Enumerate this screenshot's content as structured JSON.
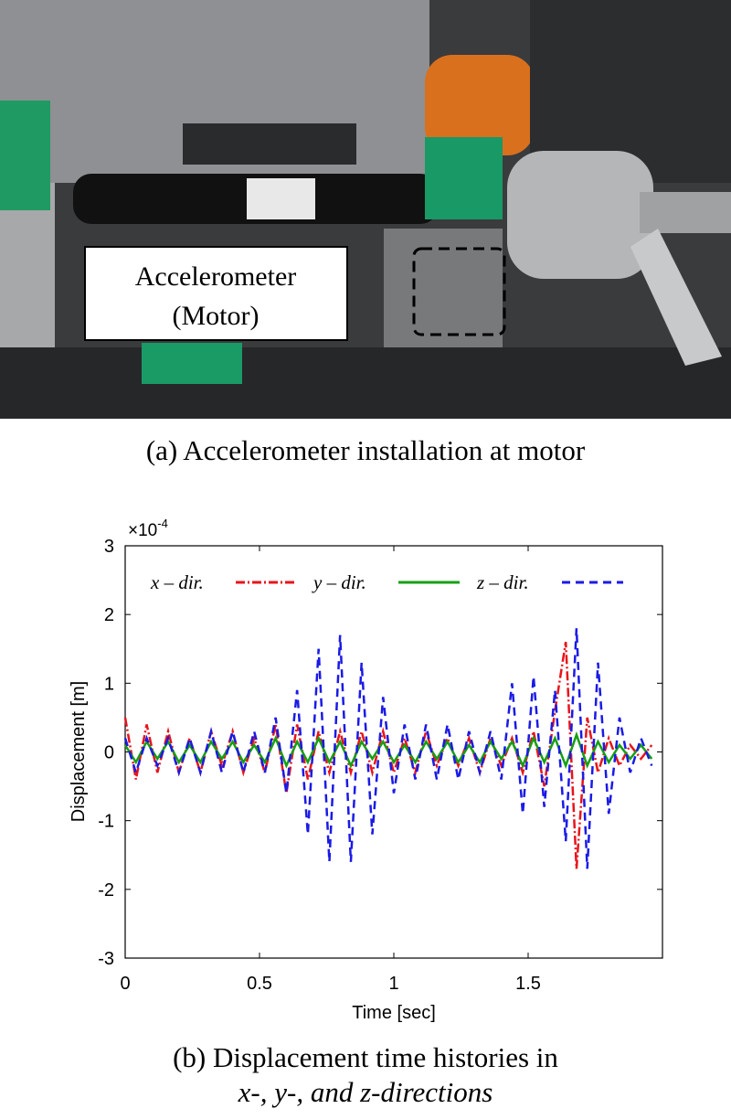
{
  "photo": {
    "label": [
      "Accelerometer",
      "(Motor)"
    ]
  },
  "captions": {
    "a": "(a) Accelerometer installation at motor",
    "b": [
      "(b) Displacement time histories in",
      "x-, y-, and z-directions"
    ]
  },
  "chart_data": {
    "type": "line",
    "xlabel": "Time [sec]",
    "ylabel": "Displacement [m]",
    "y_scale_base": "×10",
    "y_scale_exponent": "-4",
    "xlim": [
      0,
      2
    ],
    "xticks": [
      0,
      0.5,
      1,
      1.5
    ],
    "ylim": [
      -3,
      3
    ],
    "yticks": [
      -3,
      -2,
      -1,
      0,
      1,
      2,
      3
    ],
    "grid": false,
    "legend": "top",
    "x": [
      0,
      0.04,
      0.08,
      0.12,
      0.16,
      0.2,
      0.24,
      0.28,
      0.32,
      0.36,
      0.4,
      0.44,
      0.48,
      0.52,
      0.56,
      0.6,
      0.64,
      0.68,
      0.72,
      0.76,
      0.8,
      0.84,
      0.88,
      0.92,
      0.96,
      1,
      1.04,
      1.08,
      1.12,
      1.16,
      1.2,
      1.24,
      1.28,
      1.32,
      1.36,
      1.4,
      1.44,
      1.48,
      1.52,
      1.56,
      1.6,
      1.64,
      1.68,
      1.72,
      1.76,
      1.8,
      1.84,
      1.88,
      1.92,
      1.96
    ],
    "series": [
      {
        "name": "x – dir.",
        "color": "#e8141a",
        "dash": "10 3 2 3",
        "values": [
          0.5,
          -0.4,
          0.4,
          -0.3,
          0.3,
          -0.3,
          0.2,
          -0.3,
          0.3,
          -0.2,
          0.3,
          -0.3,
          0.2,
          -0.3,
          0.4,
          -0.6,
          0.4,
          -0.4,
          0.3,
          -0.3,
          0.3,
          -0.3,
          0.3,
          -0.3,
          0.3,
          -0.3,
          0.2,
          -0.3,
          0.3,
          -0.2,
          0.2,
          -0.2,
          0.2,
          -0.3,
          0.2,
          -0.2,
          0.2,
          -0.3,
          0.3,
          -0.5,
          0.6,
          1.6,
          -1.7,
          0.5,
          -0.3,
          0.2,
          -0.2,
          0.1,
          -0.1,
          0.1
        ]
      },
      {
        "name": "y – dir.",
        "color": "#14a014",
        "dash": "",
        "values": [
          0.1,
          -0.15,
          0.15,
          -0.1,
          0.15,
          -0.15,
          0.1,
          -0.15,
          0.15,
          -0.1,
          0.15,
          -0.15,
          0.1,
          -0.15,
          0.2,
          -0.2,
          0.15,
          -0.15,
          0.2,
          -0.15,
          0.15,
          -0.2,
          0.15,
          -0.1,
          0.15,
          -0.15,
          0.1,
          -0.15,
          0.15,
          -0.1,
          0.15,
          -0.15,
          0.1,
          -0.15,
          0.15,
          -0.1,
          0.15,
          -0.2,
          0.2,
          -0.15,
          0.2,
          -0.2,
          0.25,
          -0.2,
          0.15,
          -0.15,
          0.1,
          -0.1,
          0.1,
          -0.1
        ]
      },
      {
        "name": "z – dir.",
        "color": "#1a1ae6",
        "dash": "9 6",
        "values": [
          0.2,
          -0.3,
          0.2,
          -0.2,
          0.2,
          -0.3,
          0.2,
          -0.3,
          0.3,
          -0.3,
          0.3,
          -0.3,
          0.3,
          -0.3,
          0.5,
          -0.6,
          0.9,
          -1.2,
          1.5,
          -1.6,
          1.7,
          -1.6,
          1.3,
          -1.2,
          0.8,
          -0.6,
          0.4,
          -0.4,
          0.4,
          -0.4,
          0.4,
          -0.4,
          0.3,
          -0.3,
          0.3,
          -0.4,
          1.0,
          -0.9,
          1.1,
          -0.8,
          0.9,
          -1.3,
          1.8,
          -1.7,
          1.3,
          -0.9,
          0.5,
          -0.3,
          0.2,
          -0.2
        ]
      }
    ]
  }
}
